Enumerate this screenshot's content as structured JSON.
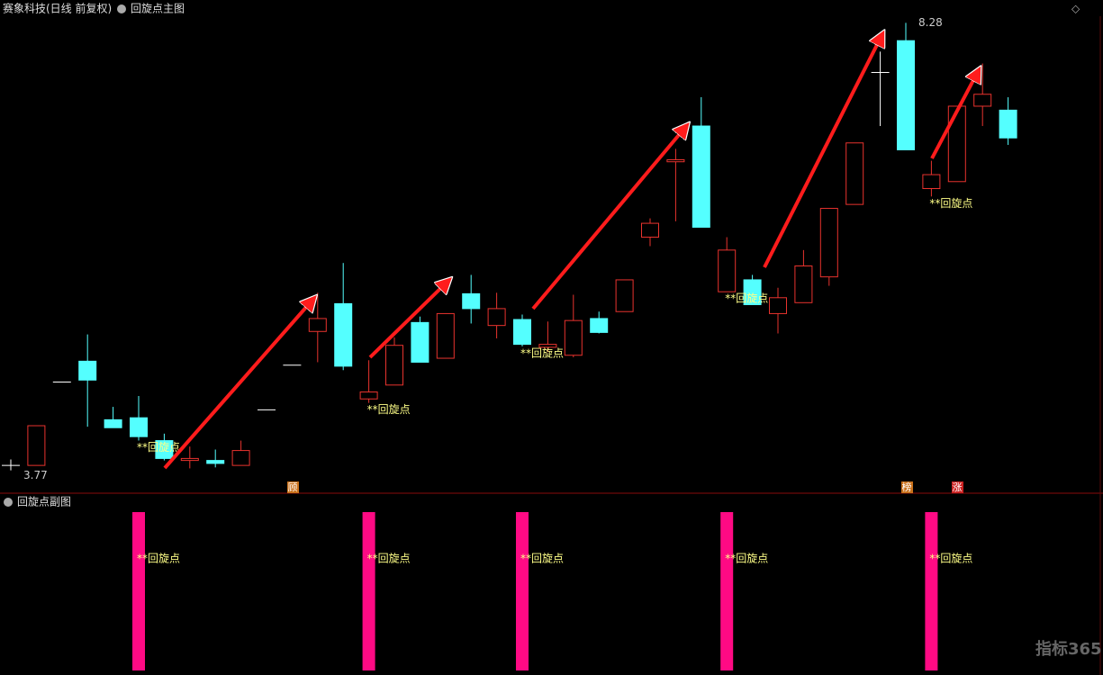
{
  "chart_data": {
    "type": "candlestick",
    "title": "赛象科技(日线 前复权)",
    "subtitle": "回旋点主图",
    "sub_title": "回旋点副图",
    "open": [
      3.82,
      3.82,
      4.66,
      4.87,
      4.28,
      4.3,
      4.07,
      3.87,
      3.87,
      3.82,
      4.38,
      4.83,
      5.17,
      5.45,
      4.49,
      4.63,
      5.26,
      4.9,
      5.55,
      5.23,
      5.29,
      5.01,
      4.93,
      5.3,
      5.37,
      6.12,
      6.88,
      7.24,
      5.57,
      5.69,
      5.35,
      5.46,
      5.72,
      6.45,
      7.78,
      8.1,
      6.61,
      6.68,
      7.44,
      7.4
    ],
    "high": [
      3.88,
      4.22,
      4.66,
      5.14,
      4.41,
      4.52,
      4.14,
      4.01,
      3.98,
      4.07,
      4.38,
      4.83,
      5.56,
      5.86,
      4.88,
      5.11,
      5.32,
      5.35,
      5.74,
      5.56,
      5.34,
      5.27,
      5.54,
      5.37,
      5.69,
      6.31,
      7.01,
      7.53,
      6.12,
      5.74,
      5.61,
      5.99,
      6.41,
      7.07,
      7.99,
      8.28,
      6.89,
      7.44,
      7.87,
      7.53
    ],
    "low": [
      3.77,
      3.82,
      4.66,
      4.21,
      4.2,
      4.07,
      3.87,
      3.79,
      3.8,
      3.82,
      4.38,
      4.83,
      4.86,
      4.78,
      4.45,
      4.63,
      4.86,
      4.9,
      5.25,
      5.1,
      5.02,
      4.96,
      4.91,
      5.15,
      5.37,
      6.03,
      6.28,
      6.22,
      5.57,
      5.44,
      5.15,
      5.46,
      5.63,
      6.45,
      7.24,
      7.0,
      6.53,
      6.68,
      7.24,
      7.05
    ],
    "close": [
      3.82,
      4.22,
      4.66,
      4.68,
      4.2,
      4.11,
      3.89,
      3.89,
      3.84,
      3.97,
      4.38,
      4.83,
      5.3,
      4.82,
      4.56,
      5.03,
      4.86,
      5.35,
      5.4,
      5.4,
      5.04,
      5.04,
      5.28,
      5.16,
      5.69,
      6.26,
      6.9,
      6.22,
      5.99,
      5.44,
      5.51,
      5.83,
      6.41,
      7.07,
      7.78,
      7.0,
      6.75,
      7.44,
      7.56,
      7.12
    ],
    "ylim": [
      3.54,
      8.51
    ],
    "up_color": "#e8332e",
    "down_color": "#54ffff",
    "flat_color": "#ffffff",
    "signal_label": "**回旋点",
    "signal_color": "#ff0a84",
    "signals": [
      5,
      14,
      20,
      28,
      36
    ],
    "markers": [
      "顾",
      "榜",
      "涨"
    ],
    "watermark": "指标365"
  }
}
